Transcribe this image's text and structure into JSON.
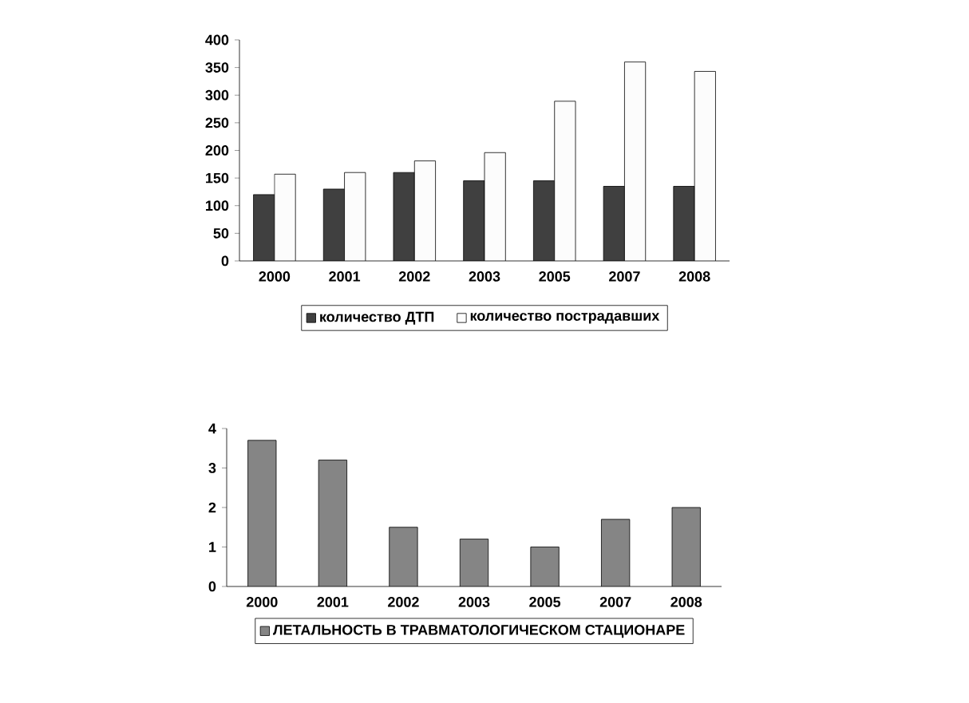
{
  "chart_data": [
    {
      "type": "bar",
      "categories": [
        "2000",
        "2001",
        "2002",
        "2003",
        "2005",
        "2007",
        "2008"
      ],
      "series": [
        {
          "name": "количество ДТП",
          "color": "#404040",
          "values": [
            120,
            130,
            160,
            145,
            145,
            135,
            135
          ]
        },
        {
          "name": "количество пострадавших",
          "color": "#fcfcfc",
          "values": [
            157,
            160,
            181,
            196,
            289,
            360,
            343
          ]
        }
      ],
      "ylim": [
        0,
        400
      ],
      "yticks": [
        0,
        50,
        100,
        150,
        200,
        250,
        300,
        350,
        400
      ],
      "grid": false,
      "legend": "bottom"
    },
    {
      "type": "bar",
      "categories": [
        "2000",
        "2001",
        "2002",
        "2003",
        "2005",
        "2007",
        "2008"
      ],
      "series": [
        {
          "name": "ЛЕТАЛЬНОСТЬ В ТРАВМАТОЛОГИЧЕСКОМ СТАЦИОНАРЕ",
          "color": "#858585",
          "values": [
            3.7,
            3.2,
            1.5,
            1.2,
            1.0,
            1.7,
            2.0
          ]
        }
      ],
      "ylim": [
        0,
        4
      ],
      "yticks": [
        0,
        1,
        2,
        3,
        4
      ],
      "grid": false,
      "legend": "bottom"
    }
  ]
}
